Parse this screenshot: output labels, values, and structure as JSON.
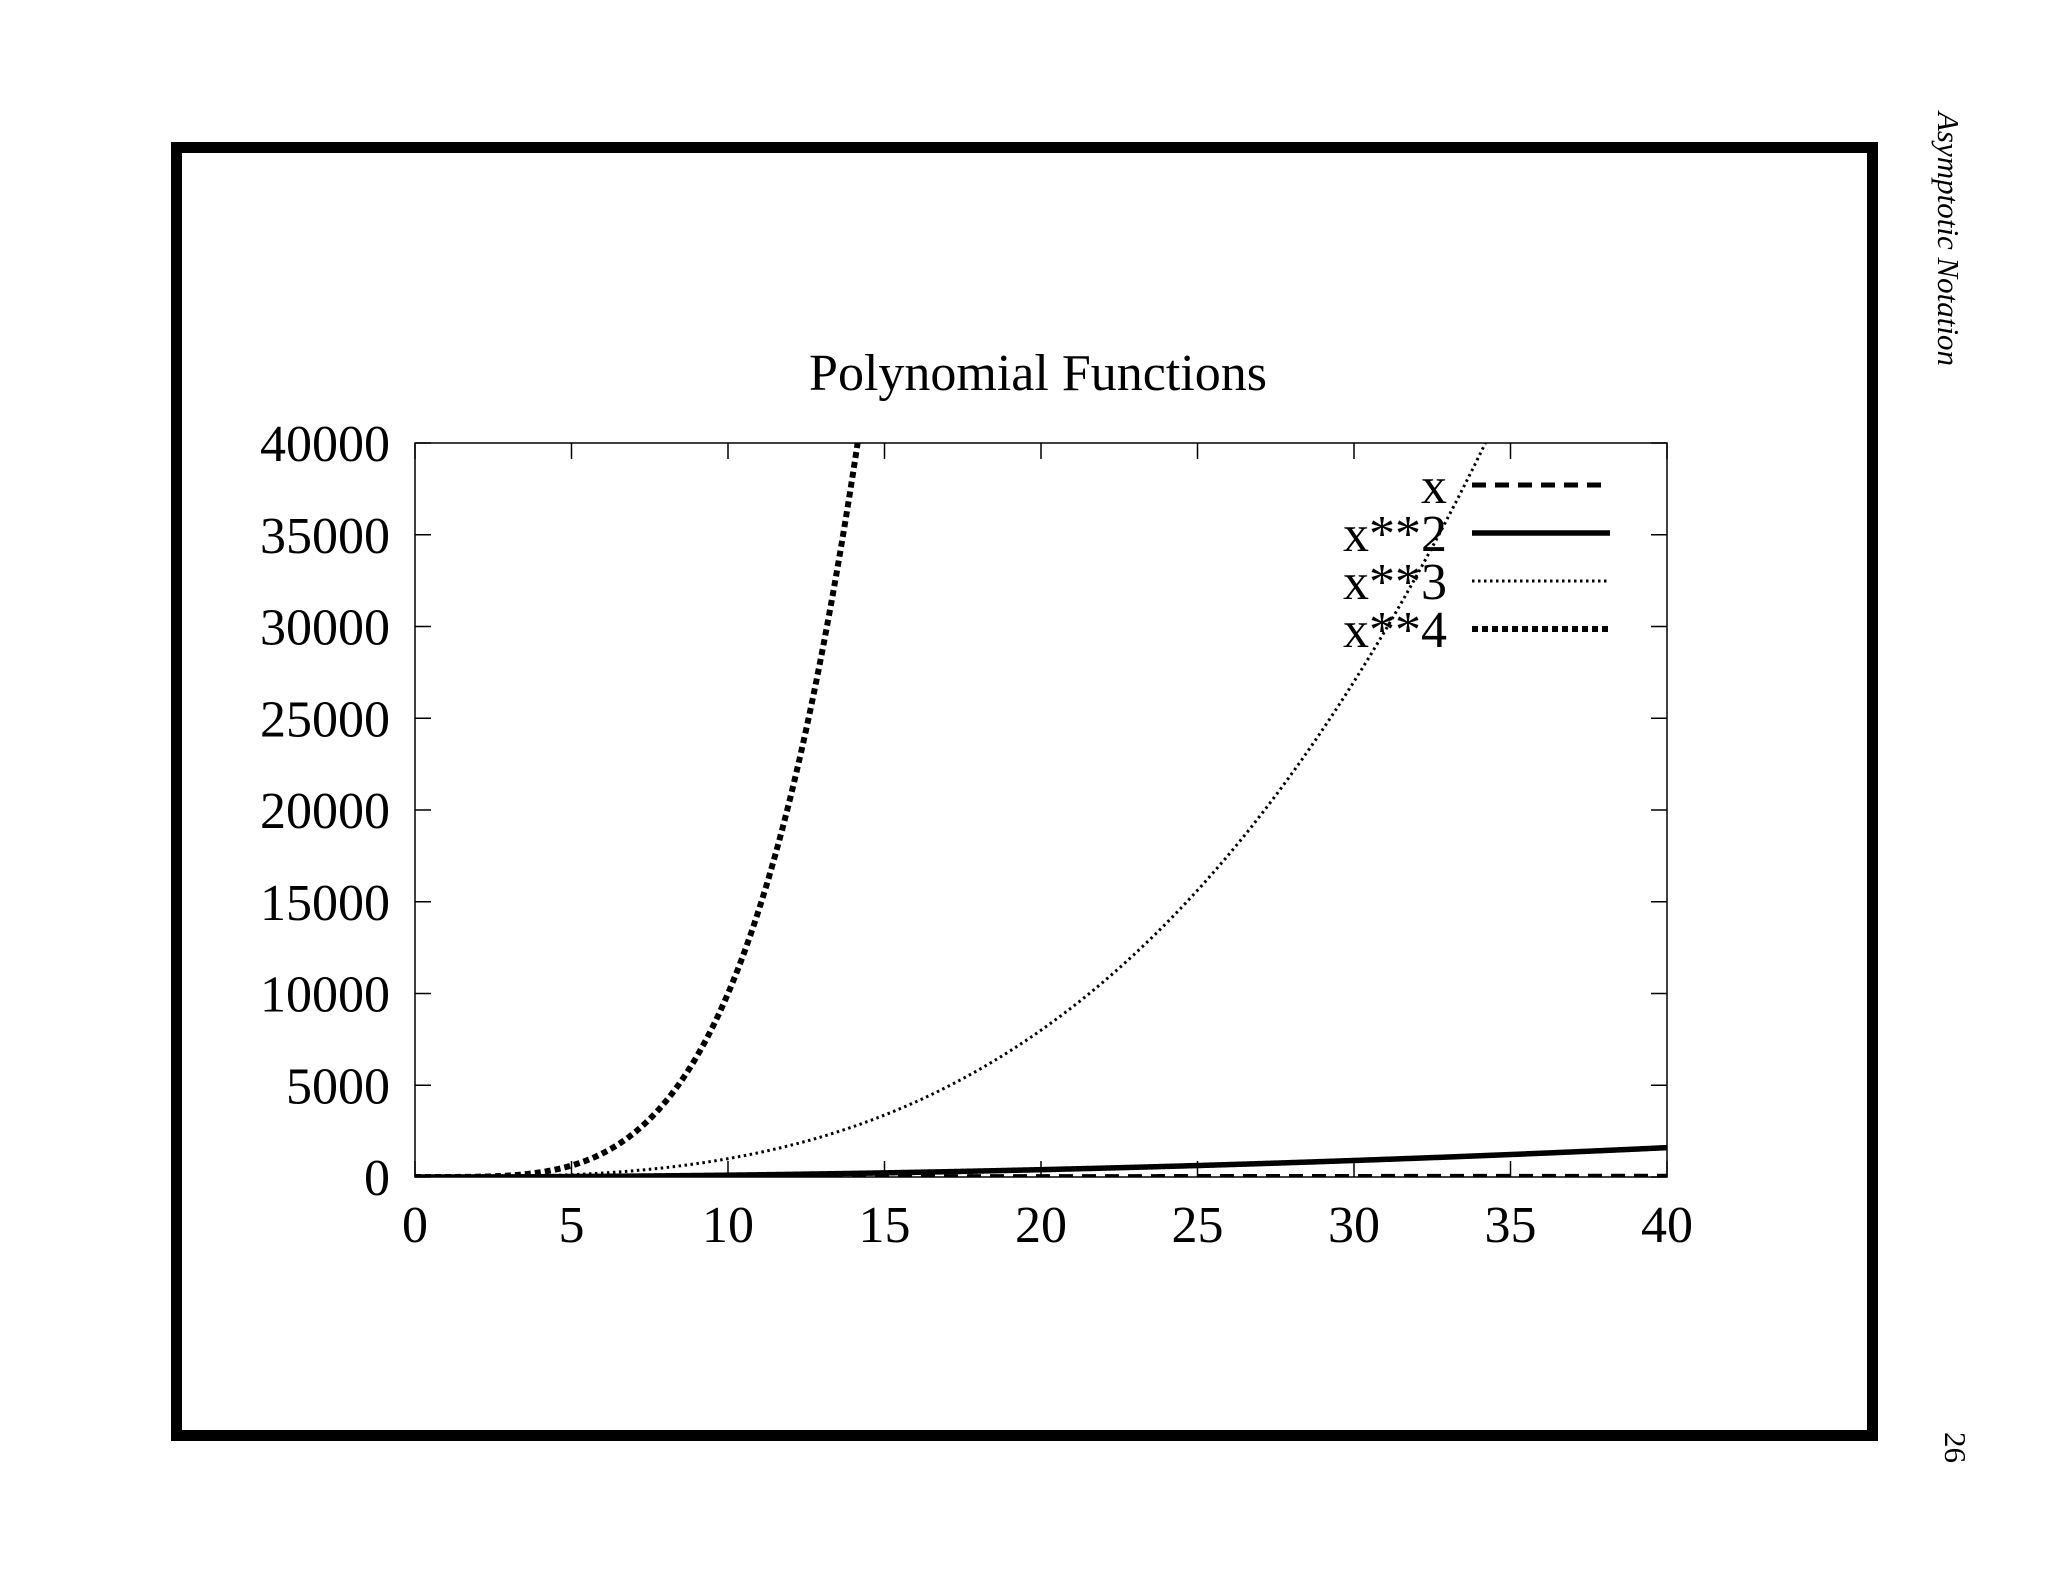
{
  "header": {
    "text": "Asymptotic Notation"
  },
  "page": {
    "number": "26"
  },
  "chart_data": {
    "type": "line",
    "title": "Polynomial Functions",
    "xlabel": "",
    "ylabel": "",
    "xlim": [
      0,
      40
    ],
    "ylim": [
      0,
      40000
    ],
    "x_ticks": [
      0,
      5,
      10,
      15,
      20,
      25,
      30,
      35,
      40
    ],
    "y_ticks": [
      0,
      5000,
      10000,
      15000,
      20000,
      25000,
      30000,
      35000,
      40000
    ],
    "x_tick_labels": [
      "0",
      "5",
      "10",
      "15",
      "20",
      "25",
      "30",
      "35",
      "40"
    ],
    "y_tick_labels": [
      "0",
      "5000",
      "10000",
      "15000",
      "20000",
      "25000",
      "30000",
      "35000",
      "40000"
    ],
    "grid": false,
    "legend_position": "top-right",
    "series": [
      {
        "name": "x",
        "function": "x",
        "exponent": 1,
        "style": "dashed",
        "color": "#000000"
      },
      {
        "name": "x**2",
        "function": "x**2",
        "exponent": 2,
        "style": "solid",
        "color": "#000000"
      },
      {
        "name": "x**3",
        "function": "x**3",
        "exponent": 3,
        "style": "dotted",
        "color": "#000000"
      },
      {
        "name": "x**4",
        "function": "x**4",
        "exponent": 4,
        "style": "dense-dotted",
        "color": "#000000"
      }
    ]
  }
}
